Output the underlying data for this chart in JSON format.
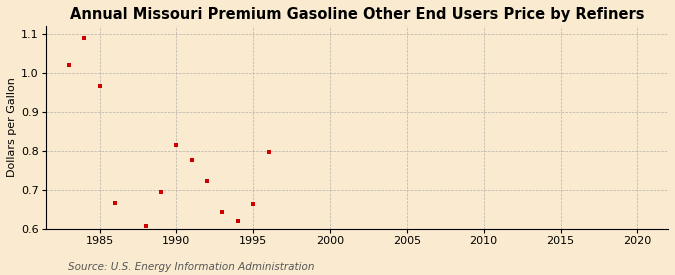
{
  "title": "Annual Missouri Premium Gasoline Other End Users Price by Refiners",
  "ylabel": "Dollars per Gallon",
  "source": "Source: U.S. Energy Information Administration",
  "x": [
    1983,
    1984,
    1985,
    1986,
    1988,
    1989,
    1990,
    1991,
    1992,
    1993,
    1994,
    1995,
    1996
  ],
  "y": [
    1.02,
    1.09,
    0.965,
    0.667,
    0.607,
    0.695,
    0.815,
    0.778,
    0.723,
    0.643,
    0.621,
    0.663,
    0.797
  ],
  "marker_color": "#cc0000",
  "marker": "s",
  "marker_size": 3.5,
  "xlim": [
    1981.5,
    2022
  ],
  "ylim": [
    0.6,
    1.12
  ],
  "xticks": [
    1985,
    1990,
    1995,
    2000,
    2005,
    2010,
    2015,
    2020
  ],
  "yticks": [
    0.6,
    0.7,
    0.8,
    0.9,
    1.0,
    1.1
  ],
  "bg_color": "#faebd0",
  "grid_color": "#999999",
  "title_fontsize": 10.5,
  "label_fontsize": 8,
  "tick_fontsize": 8,
  "source_fontsize": 7.5
}
